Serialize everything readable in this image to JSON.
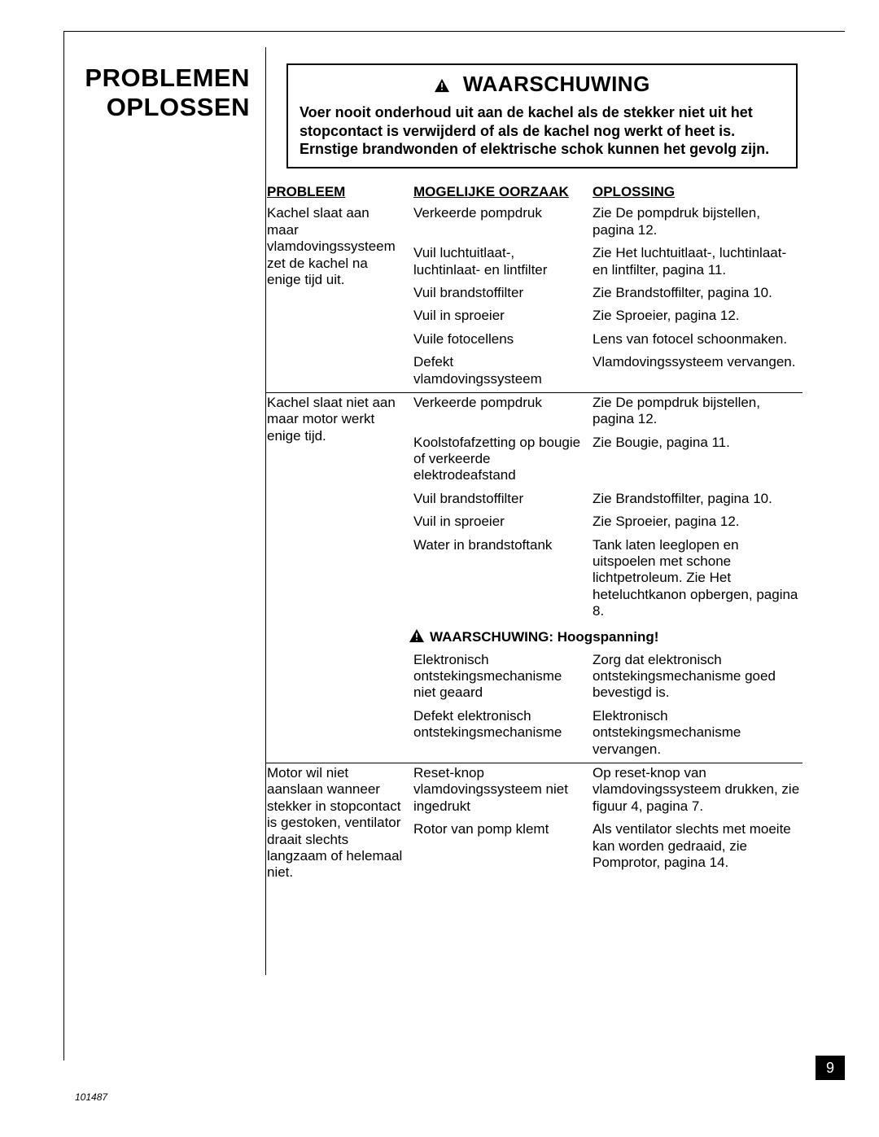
{
  "colors": {
    "text": "#000000",
    "bg": "#ffffff",
    "rule": "#000000",
    "page_num_bg": "#000000",
    "page_num_fg": "#ffffff"
  },
  "fonts": {
    "family": "Arial, Helvetica, sans-serif",
    "section_title_size_pt": 23,
    "warning_title_size_pt": 20,
    "body_size_pt": 13
  },
  "section_title_l1": "PROBLEMEN",
  "section_title_l2": "OPLOSSEN",
  "warning": {
    "title": "WAARSCHUWING",
    "body": "Voer nooit onderhoud uit aan de kachel als de stekker niet uit het stopcontact is verwijderd of als de kachel nog werkt of heet is. Ernstige brandwonden of elektrische schok kunnen het gevolg zijn."
  },
  "headers": {
    "problem": "PROBLEEM",
    "cause": "MOGELIJKE OORZAAK",
    "solution": "OPLOSSING"
  },
  "groups": [
    {
      "problem": "Kachel slaat aan maar vlamdovingssysteem zet de kachel na enige tijd uit.",
      "rows": [
        {
          "cause": "Verkeerde pompdruk",
          "solution": "Zie De pompdruk bijstellen, pagina 12."
        },
        {
          "cause": "Vuil luchtuitlaat-, luchtinlaat- en lintfilter",
          "solution": "Zie Het luchtuitlaat-, luchtinlaat- en lintfilter, pagina 11."
        },
        {
          "cause": "Vuil brandstoffilter",
          "solution": "Zie Brandstoffilter, pagina 10."
        },
        {
          "cause": "Vuil in sproeier",
          "solution": "Zie Sproeier, pagina 12."
        },
        {
          "cause": "Vuile fotocellens",
          "solution": "Lens van fotocel schoonmaken."
        },
        {
          "cause": "Defekt vlamdovingssysteem",
          "solution": "Vlamdovingssysteem vervangen."
        }
      ]
    },
    {
      "problem": "Kachel slaat niet aan maar motor werkt enige tijd.",
      "rows": [
        {
          "cause": "Verkeerde pompdruk",
          "solution": "Zie De pompdruk bijstellen, pagina 12."
        },
        {
          "cause": "Koolstofafzetting op bougie of verkeerde elektrodeafstand",
          "solution": "Zie Bougie, pagina 11."
        },
        {
          "cause": "Vuil brandstoffilter",
          "solution": "Zie Brandstoffilter, pagina 10."
        },
        {
          "cause": "Vuil in sproeier",
          "solution": "Zie Sproeier, pagina 12."
        },
        {
          "cause": "Water in brandstoftank",
          "solution": "Tank laten leeglopen en uitspoelen met schone lichtpetroleum. Zie Het heteluchtkanon opbergen, pagina 8."
        }
      ],
      "inline_warning": "WAARSCHUWING: Hoogspanning!",
      "rows_after_warning": [
        {
          "cause": "Elektronisch ontstekingsmechanisme niet geaard",
          "solution": "Zorg dat elektronisch ontstekingsmechanisme goed bevestigd is."
        },
        {
          "cause": "Defekt elektronisch ontstekingsmechanisme",
          "solution": "Elektronisch ontstekingsmechanisme vervangen."
        }
      ]
    },
    {
      "problem": "Motor wil niet aanslaan wanneer stekker in stopcontact is gestoken, ventilator draait slechts langzaam of helemaal niet.",
      "rows": [
        {
          "cause": "Reset-knop vlamdovingssysteem niet ingedrukt",
          "solution": "Op reset-knop van vlamdovingssysteem drukken, zie figuur 4, pagina 7."
        },
        {
          "cause": "Rotor van pomp klemt",
          "solution": "Als ventilator slechts met moeite kan worden gedraaid, zie Pomprotor, pagina 14."
        }
      ],
      "no_bottom": true
    }
  ],
  "page_number": "9",
  "footer_id": "101487"
}
